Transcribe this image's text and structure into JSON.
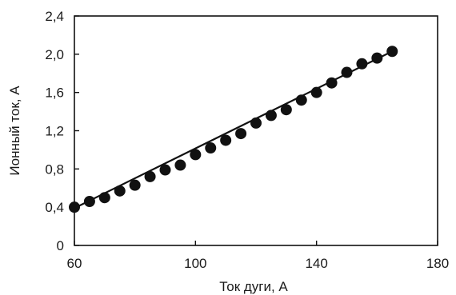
{
  "chart_data": {
    "type": "scatter",
    "xlabel": "Ток дуги, А",
    "ylabel": "Ионный ток, А",
    "xlim": [
      60,
      180
    ],
    "ylim": [
      0,
      2.4
    ],
    "x_ticks": [
      "60",
      "100",
      "140",
      "180"
    ],
    "y_ticks": [
      "0",
      "0,4",
      "0,8",
      "1,2",
      "1,6",
      "2,0",
      "2,4"
    ],
    "x_tick_values": [
      60,
      100,
      140,
      180
    ],
    "y_tick_values": [
      0,
      0.4,
      0.8,
      1.2,
      1.6,
      2.0,
      2.4
    ],
    "grid": false,
    "series": [
      {
        "type": "scatter",
        "x": [
          60,
          65,
          70,
          75,
          80,
          85,
          90,
          95,
          100,
          105,
          110,
          115,
          120,
          125,
          130,
          135,
          140,
          145,
          150,
          155,
          160,
          165
        ],
        "y": [
          0.4,
          0.46,
          0.5,
          0.57,
          0.63,
          0.72,
          0.79,
          0.84,
          0.95,
          1.02,
          1.1,
          1.17,
          1.28,
          1.36,
          1.42,
          1.52,
          1.6,
          1.7,
          1.81,
          1.9,
          1.96,
          2.03
        ]
      },
      {
        "type": "line",
        "x": [
          60,
          165
        ],
        "y": [
          0.39,
          2.03
        ]
      }
    ],
    "colors": {
      "marker": "#111111",
      "line": "#111111",
      "axis": "#111111"
    }
  }
}
